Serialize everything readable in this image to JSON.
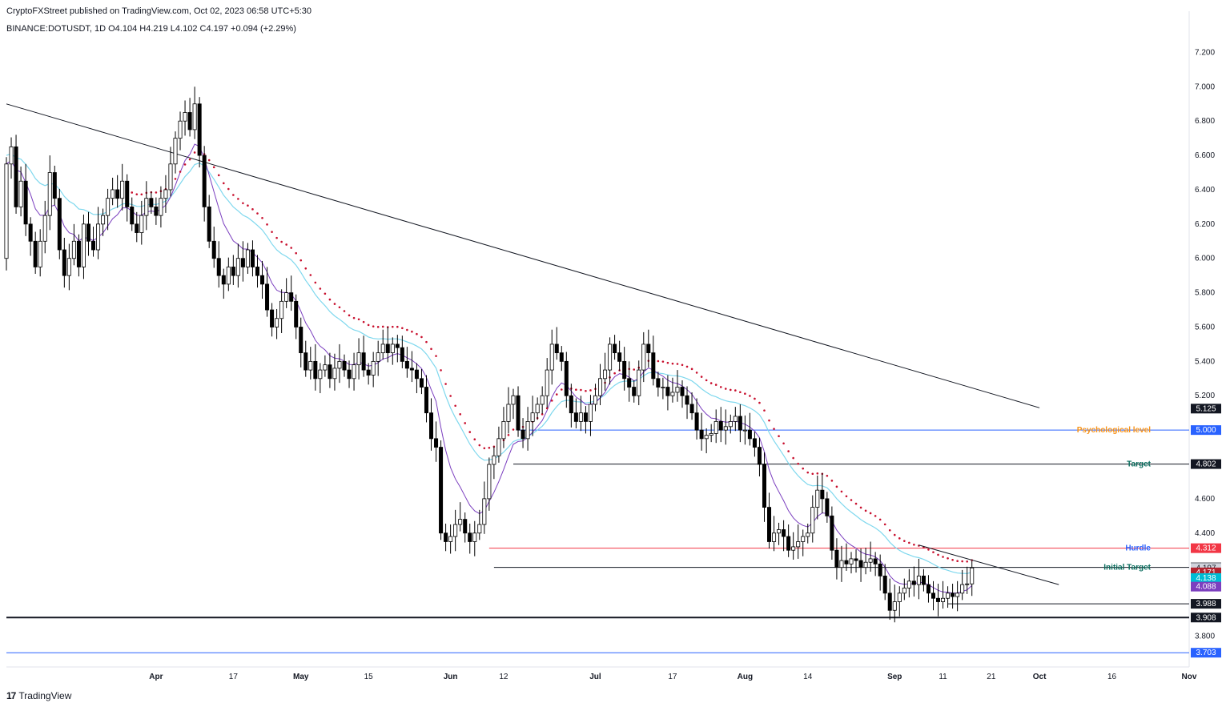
{
  "header": {
    "publish_line": "CryptoFXStreet published on TradingView.com, Oct 02, 2023 06:58 UTC+5:30",
    "symbol_line": "BINANCE:DOTUSDT, 1D  O4.104  H4.219  L4.102  C4.197  +0.094 (+2.29%)"
  },
  "footer": {
    "brand": "TradingView",
    "logo_glyph": "17"
  },
  "chart_data": {
    "type": "candlestick",
    "symbol": "BINANCE:DOTUSDT",
    "interval": "1D",
    "last_bar": {
      "open": 4.104,
      "high": 4.219,
      "low": 4.102,
      "close": 4.197,
      "change": 0.094,
      "change_pct": 2.29
    },
    "y_axis": {
      "range": [
        3.62,
        7.3
      ],
      "ticks": [
        "7.200",
        "7.000",
        "6.800",
        "6.600",
        "6.400",
        "6.200",
        "6.000",
        "5.800",
        "5.600",
        "5.400",
        "5.200",
        "4.600",
        "4.400",
        "3.800"
      ]
    },
    "x_axis": {
      "range": [
        "2023-03-01",
        "2023-11-01"
      ],
      "ticks": [
        {
          "date": "2023-04-01",
          "label": "Apr"
        },
        {
          "date": "2023-04-17",
          "label": "17"
        },
        {
          "date": "2023-05-01",
          "label": "May"
        },
        {
          "date": "2023-05-15",
          "label": "15"
        },
        {
          "date": "2023-06-01",
          "label": "Jun"
        },
        {
          "date": "2023-06-12",
          "label": "12"
        },
        {
          "date": "2023-07-01",
          "label": "Jul"
        },
        {
          "date": "2023-07-17",
          "label": "17"
        },
        {
          "date": "2023-08-01",
          "label": "Aug"
        },
        {
          "date": "2023-08-14",
          "label": "14"
        },
        {
          "date": "2023-09-01",
          "label": "Sep"
        },
        {
          "date": "2023-09-11",
          "label": "11"
        },
        {
          "date": "2023-09-21",
          "label": "21"
        },
        {
          "date": "2023-10-01",
          "label": "Oct"
        },
        {
          "date": "2023-10-16",
          "label": "16"
        },
        {
          "date": "2023-11-01",
          "label": "Nov"
        }
      ]
    },
    "price_series": {
      "first_date": "2023-03-01",
      "open_start": 6.0,
      "closes": [
        6.55,
        6.65,
        6.3,
        6.45,
        6.2,
        6.1,
        5.95,
        6.1,
        6.25,
        6.5,
        6.35,
        6.05,
        5.9,
        6.0,
        6.1,
        5.95,
        6.2,
        6.1,
        6.05,
        6.2,
        6.25,
        6.35,
        6.4,
        6.35,
        6.45,
        6.3,
        6.2,
        6.15,
        6.25,
        6.35,
        6.3,
        6.25,
        6.35,
        6.4,
        6.55,
        6.7,
        6.8,
        6.85,
        6.75,
        6.9,
        6.6,
        6.3,
        6.1,
        6.0,
        5.9,
        5.85,
        5.95,
        5.9,
        6.0,
        5.95,
        6.05,
        5.95,
        5.9,
        5.85,
        5.7,
        5.6,
        5.65,
        5.75,
        5.8,
        5.75,
        5.6,
        5.45,
        5.35,
        5.4,
        5.3,
        5.35,
        5.38,
        5.3,
        5.36,
        5.4,
        5.35,
        5.3,
        5.38,
        5.45,
        5.35,
        5.32,
        5.4,
        5.45,
        5.5,
        5.45,
        5.5,
        5.48,
        5.4,
        5.36,
        5.35,
        5.3,
        5.25,
        5.1,
        4.95,
        4.9,
        4.4,
        4.35,
        4.38,
        4.45,
        4.48,
        4.4,
        4.35,
        4.4,
        4.45,
        4.6,
        4.8,
        4.85,
        4.95,
        5.05,
        5.15,
        5.2,
        5.0,
        4.95,
        5.05,
        5.1,
        5.15,
        5.2,
        5.35,
        5.5,
        5.45,
        5.4,
        5.2,
        5.1,
        5.05,
        5.1,
        5.05,
        5.15,
        5.2,
        5.3,
        5.35,
        5.5,
        5.45,
        5.4,
        5.3,
        5.25,
        5.2,
        5.35,
        5.5,
        5.45,
        5.3,
        5.25,
        5.25,
        5.2,
        5.22,
        5.25,
        5.2,
        5.15,
        5.1,
        5.0,
        4.95,
        4.97,
        4.98,
        5.05,
        5.0,
        5.02,
        5.05,
        5.08,
        5.0,
        5.0,
        4.95,
        4.9,
        4.8,
        4.55,
        4.35,
        4.4,
        4.42,
        4.38,
        4.3,
        4.32,
        4.35,
        4.38,
        4.4,
        4.55,
        4.65,
        4.6,
        4.5,
        4.3,
        4.2,
        4.24,
        4.22,
        4.25,
        4.24,
        4.2,
        4.23,
        4.25,
        4.22,
        4.15,
        4.05,
        3.95,
        4.0,
        4.05,
        4.08,
        4.12,
        4.1,
        4.15,
        4.1,
        4.05,
        4.02,
        4.0,
        4.02,
        4.05,
        4.03,
        4.05,
        4.1,
        4.104,
        4.197
      ],
      "note_last_bar": "2023-10-01 O4.104 H4.219 L4.102 C4.197"
    },
    "lines": {
      "ma_long_start": 6.9,
      "ma_long_end": 5.13,
      "ma_long_end_date": "2023-10-01"
    },
    "horizontal_levels": [
      {
        "name": "Psychological level",
        "value": 5.0,
        "color": "#2962ff",
        "label_color": "#f7931a",
        "badge": "5.000",
        "badge_color": "#2962ff",
        "start_date": "2023-06-15"
      },
      {
        "name": "Target",
        "value": 4.802,
        "color": "#131722",
        "label_color": "#0b6e5f",
        "badge": "4.802",
        "badge_color": "#131722",
        "start_date": "2023-06-14"
      },
      {
        "name": "Hurdle",
        "value": 4.312,
        "color": "#f23645",
        "label_color": "#2962ff",
        "badge": "4.312",
        "badge_color": "#f23645",
        "start_date": "2023-06-09"
      },
      {
        "name": "Initial Target",
        "value": 4.2,
        "color": "#131722",
        "label_color": "#0b6e5f",
        "badge": "4.200",
        "badge_color": "#131722",
        "start_date": "2023-06-10"
      },
      {
        "name": "",
        "value": 3.988,
        "color": "#131722",
        "label_color": "#131722",
        "badge": "3.988",
        "badge_color": "#131722",
        "start_date": "2023-09-12"
      },
      {
        "name": "",
        "value": 3.908,
        "color": "#131722",
        "label_color": "#131722",
        "badge": "3.908",
        "badge_color": "#131722",
        "start_date": "2023-03-01",
        "thick": true
      },
      {
        "name": "",
        "value": 3.703,
        "color": "#2962ff",
        "label_color": "#2962ff",
        "badge": "3.703",
        "badge_color": "#2962ff",
        "start_date": "2023-03-01"
      }
    ],
    "price_badges": [
      {
        "value": 5.125,
        "text": "5.125",
        "bg": "#131722",
        "fg": "#ffffff"
      },
      {
        "value": 4.197,
        "text": "4.197",
        "bg": "#d1d4dc",
        "fg": "#131722"
      },
      {
        "value": 4.171,
        "text": "4.171",
        "bg": "#b2242f",
        "fg": "#ffffff"
      },
      {
        "value": 4.138,
        "text": "4.138",
        "bg": "#00bcd4",
        "fg": "#ffffff"
      },
      {
        "value": 4.088,
        "text": "4.088",
        "bg": "#7b3fbf",
        "fg": "#ffffff"
      }
    ],
    "trendline": {
      "start_date": "2023-09-06",
      "start_value": 4.33,
      "end_date": "2023-10-05",
      "end_value": 4.1,
      "color": "#131722"
    },
    "colors": {
      "bull_body": "#ffffff",
      "bear_body": "#000000",
      "wick": "#000000",
      "ma_long": "#131722",
      "ema_purple": "#7b3fbf",
      "supertrend": "#7fd8ee",
      "dots": "#c8102e"
    }
  }
}
